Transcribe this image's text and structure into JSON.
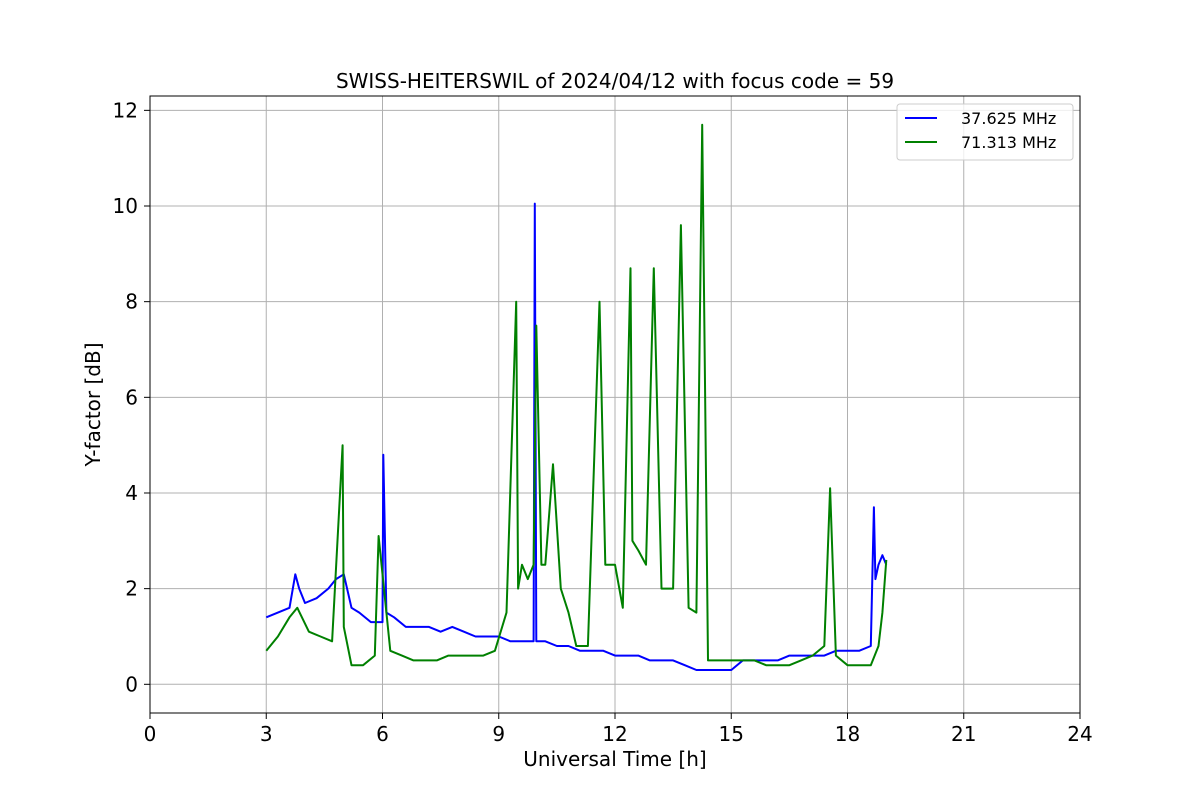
{
  "chart_data": {
    "type": "line",
    "title": "SWISS-HEITERSWIL of 2024/04/12 with focus code = 59",
    "xlabel": "Universal Time [h]",
    "ylabel": "Y-factor [dB]",
    "xlim": [
      0,
      24
    ],
    "ylim": [
      -0.6,
      12.3
    ],
    "xticks": [
      0,
      3,
      6,
      9,
      12,
      15,
      18,
      21,
      24
    ],
    "yticks": [
      0,
      2,
      4,
      6,
      8,
      10,
      12
    ],
    "grid": true,
    "legend_position": "top-right",
    "series": [
      {
        "name": "37.625 MHz",
        "color": "#0000ff",
        "x": [
          3.0,
          3.3,
          3.6,
          3.75,
          3.85,
          4.0,
          4.3,
          4.6,
          4.8,
          5.0,
          5.2,
          5.4,
          5.7,
          6.0,
          6.02,
          6.1,
          6.3,
          6.6,
          6.9,
          7.2,
          7.5,
          7.8,
          8.1,
          8.4,
          8.7,
          9.0,
          9.3,
          9.6,
          9.9,
          9.93,
          9.97,
          10.2,
          10.5,
          10.8,
          11.1,
          11.4,
          11.7,
          12.0,
          12.3,
          12.6,
          12.9,
          13.2,
          13.5,
          13.8,
          14.1,
          14.4,
          14.7,
          15.0,
          15.3,
          15.6,
          15.9,
          16.2,
          16.5,
          16.8,
          17.1,
          17.4,
          17.7,
          18.0,
          18.3,
          18.6,
          18.68,
          18.72,
          18.8,
          18.9,
          18.95,
          19.0
        ],
        "y": [
          1.4,
          1.5,
          1.6,
          2.3,
          2.0,
          1.7,
          1.8,
          2.0,
          2.2,
          2.3,
          1.6,
          1.5,
          1.3,
          1.3,
          4.8,
          1.5,
          1.4,
          1.2,
          1.2,
          1.2,
          1.1,
          1.2,
          1.1,
          1.0,
          1.0,
          1.0,
          0.9,
          0.9,
          0.9,
          10.05,
          0.9,
          0.9,
          0.8,
          0.8,
          0.7,
          0.7,
          0.7,
          0.6,
          0.6,
          0.6,
          0.5,
          0.5,
          0.5,
          0.4,
          0.3,
          0.3,
          0.3,
          0.3,
          0.5,
          0.5,
          0.5,
          0.5,
          0.6,
          0.6,
          0.6,
          0.6,
          0.7,
          0.7,
          0.7,
          0.8,
          3.7,
          2.2,
          2.5,
          2.7,
          2.6,
          2.5
        ]
      },
      {
        "name": "71.313 MHz",
        "color": "#008000",
        "x": [
          3.0,
          3.3,
          3.6,
          3.8,
          4.1,
          4.4,
          4.7,
          4.97,
          5.0,
          5.2,
          5.5,
          5.8,
          5.9,
          6.2,
          6.5,
          6.8,
          7.1,
          7.4,
          7.7,
          8.0,
          8.3,
          8.6,
          8.9,
          9.2,
          9.45,
          9.5,
          9.6,
          9.75,
          9.9,
          9.97,
          10.1,
          10.2,
          10.4,
          10.6,
          10.8,
          11.0,
          11.3,
          11.6,
          11.75,
          12.0,
          12.2,
          12.4,
          12.45,
          12.6,
          12.8,
          13.0,
          13.2,
          13.5,
          13.7,
          13.9,
          14.1,
          14.25,
          14.4,
          14.7,
          15.0,
          15.3,
          15.6,
          15.9,
          16.2,
          16.5,
          16.8,
          17.1,
          17.4,
          17.55,
          17.7,
          18.0,
          18.3,
          18.6,
          18.8,
          18.9,
          19.0
        ],
        "y": [
          0.7,
          1.0,
          1.4,
          1.6,
          1.1,
          1.0,
          0.9,
          5.0,
          1.2,
          0.4,
          0.4,
          0.6,
          3.1,
          0.7,
          0.6,
          0.5,
          0.5,
          0.5,
          0.6,
          0.6,
          0.6,
          0.6,
          0.7,
          1.5,
          8.0,
          2.0,
          2.5,
          2.2,
          2.5,
          7.5,
          2.5,
          2.5,
          4.6,
          2.0,
          1.5,
          0.8,
          0.8,
          8.0,
          2.5,
          2.5,
          1.6,
          8.7,
          3.0,
          2.8,
          2.5,
          8.7,
          2.0,
          2.0,
          9.6,
          1.6,
          1.5,
          11.7,
          0.5,
          0.5,
          0.5,
          0.5,
          0.5,
          0.4,
          0.4,
          0.4,
          0.5,
          0.6,
          0.8,
          4.1,
          0.6,
          0.4,
          0.4,
          0.4,
          0.8,
          1.5,
          2.6
        ]
      }
    ]
  }
}
